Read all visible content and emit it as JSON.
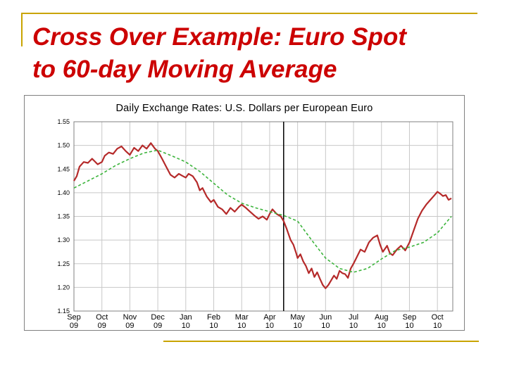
{
  "slide": {
    "title_line1": "Cross Over Example: Euro Spot",
    "title_line2": "to 60-day Moving Average"
  },
  "chart_data": {
    "type": "line",
    "title": "Daily Exchange Rates: U.S. Dollars per European Euro",
    "ylim": [
      1.15,
      1.55
    ],
    "yticks": [
      "1.55",
      "1.50",
      "1.45",
      "1.40",
      "1.35",
      "1.30",
      "1.25",
      "1.20",
      "1.15"
    ],
    "x_labels": [
      {
        "m": "Sep",
        "y": "09"
      },
      {
        "m": "Oct",
        "y": "09"
      },
      {
        "m": "Nov",
        "y": "09"
      },
      {
        "m": "Dec",
        "y": "09"
      },
      {
        "m": "Jan",
        "y": "10"
      },
      {
        "m": "Feb",
        "y": "10"
      },
      {
        "m": "Mar",
        "y": "10"
      },
      {
        "m": "Apr",
        "y": "10"
      },
      {
        "m": "May",
        "y": "10"
      },
      {
        "m": "Jun",
        "y": "10"
      },
      {
        "m": "Jul",
        "y": "10"
      },
      {
        "m": "Aug",
        "y": "10"
      },
      {
        "m": "Sep",
        "y": "10"
      },
      {
        "m": "Oct",
        "y": "10"
      }
    ],
    "x_month_index_range": [
      0,
      13.55
    ],
    "grid": true,
    "crossover_marker_month": 7.5,
    "colors": {
      "spot": "#b52a2a",
      "moving_average": "#3cb43c",
      "grid": "#c8c8c8",
      "marker": "#000000"
    },
    "series": [
      {
        "key": "spot",
        "values": [
          [
            0.0,
            1.425
          ],
          [
            0.1,
            1.435
          ],
          [
            0.2,
            1.455
          ],
          [
            0.35,
            1.465
          ],
          [
            0.5,
            1.463
          ],
          [
            0.65,
            1.472
          ],
          [
            0.85,
            1.46
          ],
          [
            1.0,
            1.465
          ],
          [
            1.1,
            1.478
          ],
          [
            1.25,
            1.485
          ],
          [
            1.4,
            1.482
          ],
          [
            1.55,
            1.493
          ],
          [
            1.7,
            1.498
          ],
          [
            1.85,
            1.488
          ],
          [
            2.0,
            1.48
          ],
          [
            2.15,
            1.495
          ],
          [
            2.3,
            1.488
          ],
          [
            2.45,
            1.5
          ],
          [
            2.6,
            1.493
          ],
          [
            2.75,
            1.505
          ],
          [
            2.9,
            1.493
          ],
          [
            3.0,
            1.488
          ],
          [
            3.15,
            1.472
          ],
          [
            3.3,
            1.455
          ],
          [
            3.45,
            1.438
          ],
          [
            3.6,
            1.432
          ],
          [
            3.75,
            1.44
          ],
          [
            3.9,
            1.435
          ],
          [
            4.0,
            1.432
          ],
          [
            4.1,
            1.44
          ],
          [
            4.25,
            1.435
          ],
          [
            4.4,
            1.422
          ],
          [
            4.5,
            1.405
          ],
          [
            4.6,
            1.41
          ],
          [
            4.75,
            1.392
          ],
          [
            4.9,
            1.38
          ],
          [
            5.0,
            1.385
          ],
          [
            5.15,
            1.37
          ],
          [
            5.3,
            1.365
          ],
          [
            5.45,
            1.355
          ],
          [
            5.6,
            1.368
          ],
          [
            5.75,
            1.36
          ],
          [
            5.9,
            1.37
          ],
          [
            6.0,
            1.375
          ],
          [
            6.15,
            1.368
          ],
          [
            6.3,
            1.36
          ],
          [
            6.45,
            1.352
          ],
          [
            6.6,
            1.345
          ],
          [
            6.75,
            1.35
          ],
          [
            6.9,
            1.343
          ],
          [
            7.0,
            1.355
          ],
          [
            7.1,
            1.365
          ],
          [
            7.25,
            1.355
          ],
          [
            7.4,
            1.35
          ],
          [
            7.5,
            1.34
          ],
          [
            7.6,
            1.325
          ],
          [
            7.75,
            1.3
          ],
          [
            7.85,
            1.29
          ],
          [
            7.95,
            1.272
          ],
          [
            8.0,
            1.262
          ],
          [
            8.1,
            1.27
          ],
          [
            8.2,
            1.255
          ],
          [
            8.3,
            1.245
          ],
          [
            8.4,
            1.23
          ],
          [
            8.5,
            1.24
          ],
          [
            8.6,
            1.222
          ],
          [
            8.7,
            1.232
          ],
          [
            8.8,
            1.218
          ],
          [
            8.9,
            1.205
          ],
          [
            9.0,
            1.198
          ],
          [
            9.1,
            1.205
          ],
          [
            9.2,
            1.215
          ],
          [
            9.3,
            1.225
          ],
          [
            9.4,
            1.218
          ],
          [
            9.5,
            1.235
          ],
          [
            9.6,
            1.23
          ],
          [
            9.7,
            1.228
          ],
          [
            9.8,
            1.22
          ],
          [
            9.9,
            1.24
          ],
          [
            10.0,
            1.25
          ],
          [
            10.1,
            1.262
          ],
          [
            10.25,
            1.28
          ],
          [
            10.4,
            1.275
          ],
          [
            10.55,
            1.295
          ],
          [
            10.7,
            1.305
          ],
          [
            10.85,
            1.31
          ],
          [
            10.95,
            1.29
          ],
          [
            11.05,
            1.275
          ],
          [
            11.2,
            1.288
          ],
          [
            11.3,
            1.272
          ],
          [
            11.4,
            1.268
          ],
          [
            11.55,
            1.28
          ],
          [
            11.7,
            1.288
          ],
          [
            11.85,
            1.278
          ],
          [
            12.0,
            1.295
          ],
          [
            12.15,
            1.32
          ],
          [
            12.3,
            1.345
          ],
          [
            12.45,
            1.362
          ],
          [
            12.6,
            1.375
          ],
          [
            12.75,
            1.385
          ],
          [
            12.9,
            1.395
          ],
          [
            13.0,
            1.402
          ],
          [
            13.1,
            1.398
          ],
          [
            13.2,
            1.393
          ],
          [
            13.3,
            1.395
          ],
          [
            13.4,
            1.385
          ],
          [
            13.5,
            1.388
          ]
        ]
      },
      {
        "key": "moving_average",
        "values": [
          [
            0.0,
            1.41
          ],
          [
            0.5,
            1.425
          ],
          [
            1.0,
            1.44
          ],
          [
            1.5,
            1.458
          ],
          [
            2.0,
            1.472
          ],
          [
            2.5,
            1.484
          ],
          [
            3.0,
            1.49
          ],
          [
            3.5,
            1.478
          ],
          [
            4.0,
            1.465
          ],
          [
            4.5,
            1.445
          ],
          [
            5.0,
            1.42
          ],
          [
            5.5,
            1.395
          ],
          [
            6.0,
            1.378
          ],
          [
            6.5,
            1.368
          ],
          [
            7.0,
            1.36
          ],
          [
            7.5,
            1.352
          ],
          [
            8.0,
            1.34
          ],
          [
            8.5,
            1.3
          ],
          [
            9.0,
            1.262
          ],
          [
            9.5,
            1.24
          ],
          [
            10.0,
            1.232
          ],
          [
            10.5,
            1.24
          ],
          [
            11.0,
            1.26
          ],
          [
            11.5,
            1.278
          ],
          [
            12.0,
            1.285
          ],
          [
            12.5,
            1.295
          ],
          [
            13.0,
            1.315
          ],
          [
            13.5,
            1.35
          ]
        ]
      }
    ]
  }
}
